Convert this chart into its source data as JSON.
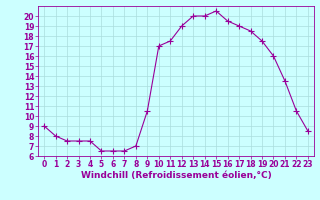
{
  "x": [
    0,
    1,
    2,
    3,
    4,
    5,
    6,
    7,
    8,
    9,
    10,
    11,
    12,
    13,
    14,
    15,
    16,
    17,
    18,
    19,
    20,
    21,
    22,
    23
  ],
  "y": [
    9.0,
    8.0,
    7.5,
    7.5,
    7.5,
    6.5,
    6.5,
    6.5,
    7.0,
    10.5,
    17.0,
    17.5,
    19.0,
    20.0,
    20.0,
    20.5,
    19.5,
    19.0,
    18.5,
    17.5,
    16.0,
    13.5,
    10.5,
    8.5
  ],
  "line_color": "#990099",
  "marker": "+",
  "marker_size": 4,
  "bg_color": "#ccffff",
  "grid_color": "#aadddd",
  "xlabel": "Windchill (Refroidissement éolien,°C)",
  "xlim": [
    -0.5,
    23.5
  ],
  "ylim": [
    6,
    21
  ],
  "yticks": [
    6,
    7,
    8,
    9,
    10,
    11,
    12,
    13,
    14,
    15,
    16,
    17,
    18,
    19,
    20
  ],
  "xticks": [
    0,
    1,
    2,
    3,
    4,
    5,
    6,
    7,
    8,
    9,
    10,
    11,
    12,
    13,
    14,
    15,
    16,
    17,
    18,
    19,
    20,
    21,
    22,
    23
  ],
  "tick_label_fontsize": 5.5,
  "xlabel_fontsize": 6.5,
  "label_color": "#990099"
}
